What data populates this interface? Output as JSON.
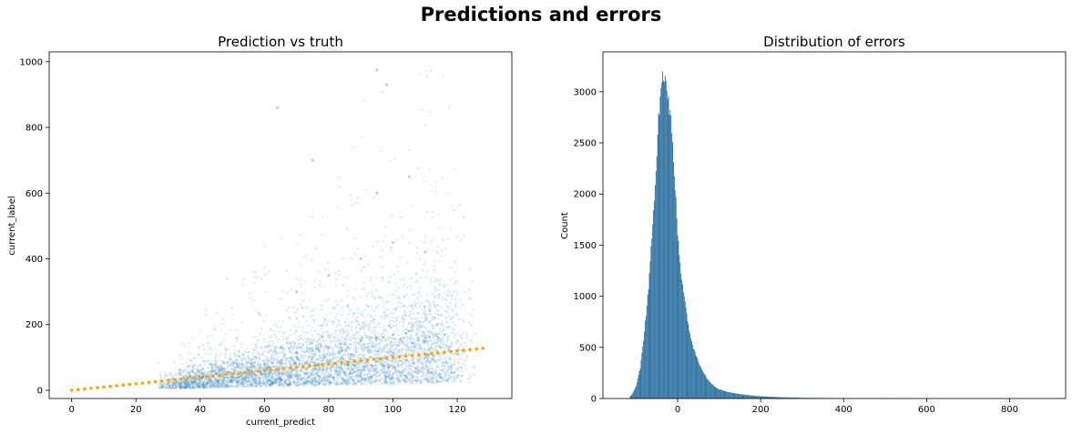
{
  "figure": {
    "suptitle": "Predictions and errors"
  },
  "chart_data": [
    {
      "type": "scatter",
      "title": "Prediction vs truth",
      "xlabel": "current_predict",
      "ylabel": "current_label",
      "xlim": [
        -7,
        137
      ],
      "ylim": [
        -25,
        1030
      ],
      "xticks": [
        0,
        20,
        40,
        60,
        80,
        100,
        120
      ],
      "yticks": [
        0,
        200,
        400,
        600,
        800,
        1000
      ],
      "grid": false,
      "point_color": "#1f77b4",
      "point_opacity": 0.15,
      "series": [
        {
          "color": "#1f77b4",
          "description_of_density": "dense cloud 30-120 on x; label mostly 0-200, spreading up to ~700 at high x",
          "points": [
            [
              30,
              20
            ],
            [
              35,
              30
            ],
            [
              40,
              40
            ],
            [
              45,
              50
            ],
            [
              50,
              40
            ],
            [
              55,
              60
            ],
            [
              60,
              80
            ],
            [
              65,
              90
            ],
            [
              70,
              100
            ],
            [
              75,
              120
            ],
            [
              80,
              130
            ],
            [
              85,
              140
            ],
            [
              90,
              150
            ],
            [
              95,
              160
            ],
            [
              100,
              170
            ],
            [
              105,
              180
            ],
            [
              110,
              150
            ],
            [
              115,
              130
            ],
            [
              120,
              110
            ],
            [
              70,
              300
            ],
            [
              80,
              350
            ],
            [
              90,
              400
            ],
            [
              100,
              450
            ],
            [
              110,
              420
            ],
            [
              95,
              600
            ],
            [
              105,
              650
            ],
            [
              75,
              700
            ],
            [
              64,
              860
            ],
            [
              98,
              930
            ],
            [
              95,
              975
            ]
          ]
        },
        {
          "name": "",
          "color": "#ffa500",
          "style": "dotted",
          "x": [
            0,
            129
          ],
          "y": [
            0,
            129
          ]
        }
      ]
    },
    {
      "type": "bar",
      "title": "Distribution of errors",
      "xlabel": "",
      "ylabel": "Count",
      "xlim": [
        -180,
        935
      ],
      "ylim": [
        0,
        3390
      ],
      "xticks": [
        0,
        200,
        400,
        600,
        800
      ],
      "yticks": [
        0,
        500,
        1000,
        1500,
        2000,
        2500,
        3000
      ],
      "bar_color": "#3274a1",
      "grid": false,
      "histogram": {
        "bin_centers": [
          -110,
          -100,
          -90,
          -80,
          -70,
          -60,
          -50,
          -45,
          -40,
          -35,
          -30,
          -25,
          -20,
          -15,
          -10,
          -5,
          0,
          10,
          20,
          30,
          40,
          50,
          60,
          70,
          80,
          90,
          100,
          120,
          140,
          160,
          180,
          200,
          250,
          300,
          350,
          400,
          450,
          500,
          600,
          700,
          800,
          880
        ],
        "counts": [
          40,
          120,
          300,
          650,
          1100,
          1700,
          2400,
          2800,
          3050,
          3200,
          3150,
          3000,
          2850,
          2650,
          2350,
          2000,
          1600,
          1150,
          880,
          620,
          470,
          360,
          270,
          200,
          150,
          115,
          90,
          65,
          50,
          38,
          28,
          22,
          12,
          7,
          5,
          4,
          3,
          2,
          1,
          1,
          1,
          1
        ]
      }
    }
  ]
}
